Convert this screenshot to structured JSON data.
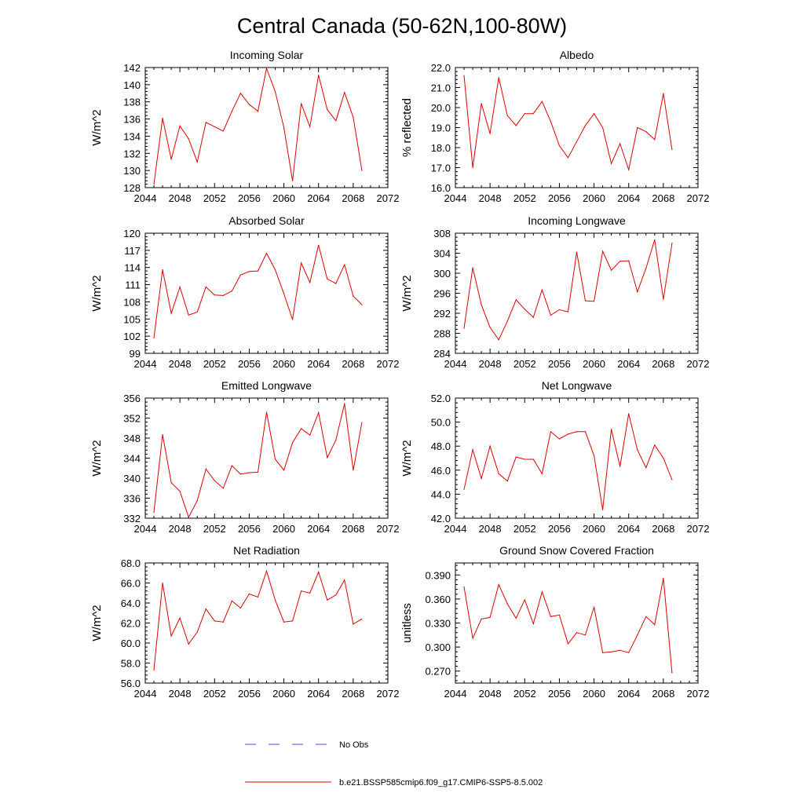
{
  "figure_title": "Central Canada (50-62N,100-80W)",
  "legend": {
    "items": [
      {
        "label": "No Obs",
        "color": "#4a4ae0",
        "dash": "dashed"
      },
      {
        "label": "b.e21.BSSP585cmip6.f09_g17.CMIP6-SSP5-8.5.002",
        "color": "#e00000",
        "dash": "solid"
      }
    ]
  },
  "chart_data": [
    {
      "type": "line",
      "title": "Incoming Solar",
      "ylabel": "W/m^2",
      "xlim": [
        2044,
        2072
      ],
      "ylim": [
        128,
        142
      ],
      "xticks": [
        2044,
        2048,
        2052,
        2056,
        2060,
        2064,
        2068,
        2072
      ],
      "xtick_labels": [
        "2044",
        "2048",
        "2052",
        "2056",
        "2060",
        "2064",
        "2068",
        "2072"
      ],
      "yticks": [
        128,
        130,
        132,
        134,
        136,
        138,
        140,
        142
      ],
      "ytick_labels": [
        "128",
        "130",
        "132",
        "134",
        "136",
        "138",
        "140",
        "142"
      ],
      "x": [
        2045,
        2046,
        2047,
        2048,
        2049,
        2050,
        2051,
        2052,
        2053,
        2054,
        2055,
        2056,
        2057,
        2058,
        2059,
        2060,
        2061,
        2062,
        2063,
        2064,
        2065,
        2066,
        2067,
        2068,
        2069
      ],
      "series": [
        {
          "color": "#e00000",
          "values": [
            128.4,
            136.1,
            131.3,
            135.2,
            133.7,
            131.0,
            135.6,
            135.1,
            134.6,
            136.9,
            139.0,
            137.7,
            136.9,
            141.9,
            139.2,
            135.0,
            128.8,
            137.8,
            135.1,
            141.1,
            137.1,
            135.8,
            139.1,
            136.2,
            130.0
          ]
        }
      ]
    },
    {
      "type": "line",
      "title": "Albedo",
      "ylabel": "% reflected",
      "xlim": [
        2044,
        2072
      ],
      "ylim": [
        16.0,
        22.0
      ],
      "xticks": [
        2044,
        2048,
        2052,
        2056,
        2060,
        2064,
        2068,
        2072
      ],
      "xtick_labels": [
        "2044",
        "2048",
        "2052",
        "2056",
        "2060",
        "2064",
        "2068",
        "2072"
      ],
      "yticks": [
        16,
        17,
        18,
        19,
        20,
        21,
        22
      ],
      "ytick_labels": [
        "16.0",
        "17.0",
        "18.0",
        "19.0",
        "20.0",
        "21.0",
        "22.0"
      ],
      "x": [
        2045,
        2046,
        2047,
        2048,
        2049,
        2050,
        2051,
        2052,
        2053,
        2054,
        2055,
        2056,
        2057,
        2058,
        2059,
        2060,
        2061,
        2062,
        2063,
        2064,
        2065,
        2066,
        2067,
        2068,
        2069
      ],
      "series": [
        {
          "color": "#e00000",
          "values": [
            21.6,
            17.0,
            20.2,
            18.7,
            21.5,
            19.6,
            19.1,
            19.7,
            19.7,
            20.3,
            19.3,
            18.1,
            17.5,
            18.3,
            19.1,
            19.7,
            19.0,
            17.2,
            18.2,
            16.9,
            19.0,
            18.8,
            18.4,
            20.7,
            17.9
          ]
        }
      ]
    },
    {
      "type": "line",
      "title": "Absorbed Solar",
      "ylabel": "W/m^2",
      "xlim": [
        2044,
        2072
      ],
      "ylim": [
        99,
        120
      ],
      "xticks": [
        2044,
        2048,
        2052,
        2056,
        2060,
        2064,
        2068,
        2072
      ],
      "xtick_labels": [
        "2044",
        "2048",
        "2052",
        "2056",
        "2060",
        "2064",
        "2068",
        "2072"
      ],
      "yticks": [
        99,
        102,
        105,
        108,
        111,
        114,
        117,
        120
      ],
      "ytick_labels": [
        "99",
        "102",
        "105",
        "108",
        "111",
        "114",
        "117",
        "120"
      ],
      "x": [
        2045,
        2046,
        2047,
        2048,
        2049,
        2050,
        2051,
        2052,
        2053,
        2054,
        2055,
        2056,
        2057,
        2058,
        2059,
        2060,
        2061,
        2062,
        2063,
        2064,
        2065,
        2066,
        2067,
        2068,
        2069
      ],
      "series": [
        {
          "color": "#e00000",
          "values": [
            101.7,
            113.6,
            106.0,
            110.6,
            105.7,
            106.2,
            110.6,
            109.2,
            109.1,
            109.9,
            112.7,
            113.3,
            113.4,
            116.5,
            113.6,
            109.4,
            104.9,
            114.8,
            111.4,
            117.9,
            112.0,
            111.2,
            114.5,
            109.0,
            107.5
          ]
        }
      ]
    },
    {
      "type": "line",
      "title": "Incoming Longwave",
      "ylabel": "W/m^2",
      "xlim": [
        2044,
        2072
      ],
      "ylim": [
        284,
        308
      ],
      "xticks": [
        2044,
        2048,
        2052,
        2056,
        2060,
        2064,
        2068,
        2072
      ],
      "xtick_labels": [
        "2044",
        "2048",
        "2052",
        "2056",
        "2060",
        "2064",
        "2068",
        "2072"
      ],
      "yticks": [
        284,
        288,
        292,
        296,
        300,
        304,
        308
      ],
      "ytick_labels": [
        "284",
        "288",
        "292",
        "296",
        "300",
        "304",
        "308"
      ],
      "x": [
        2045,
        2046,
        2047,
        2048,
        2049,
        2050,
        2051,
        2052,
        2053,
        2054,
        2055,
        2056,
        2057,
        2058,
        2059,
        2060,
        2061,
        2062,
        2063,
        2064,
        2065,
        2066,
        2067,
        2068,
        2069
      ],
      "series": [
        {
          "color": "#e00000",
          "values": [
            289.0,
            301.1,
            293.7,
            289.2,
            286.7,
            290.4,
            294.7,
            292.8,
            291.2,
            296.7,
            291.6,
            292.7,
            292.3,
            304.2,
            294.5,
            294.4,
            304.4,
            300.6,
            302.4,
            302.5,
            296.3,
            301.0,
            306.7,
            294.8,
            306.0
          ]
        }
      ]
    },
    {
      "type": "line",
      "title": "Emitted Longwave",
      "ylabel": "W/m^2",
      "xlim": [
        2044,
        2072
      ],
      "ylim": [
        332,
        356
      ],
      "xticks": [
        2044,
        2048,
        2052,
        2056,
        2060,
        2064,
        2068,
        2072
      ],
      "xtick_labels": [
        "2044",
        "2048",
        "2052",
        "2056",
        "2060",
        "2064",
        "2068",
        "2072"
      ],
      "yticks": [
        332,
        336,
        340,
        344,
        348,
        352,
        356
      ],
      "ytick_labels": [
        "332",
        "336",
        "340",
        "344",
        "348",
        "352",
        "356"
      ],
      "x": [
        2045,
        2046,
        2047,
        2048,
        2049,
        2050,
        2051,
        2052,
        2053,
        2054,
        2055,
        2056,
        2057,
        2058,
        2059,
        2060,
        2061,
        2062,
        2063,
        2064,
        2065,
        2066,
        2067,
        2068,
        2069
      ],
      "series": [
        {
          "color": "#e00000",
          "values": [
            333.2,
            348.7,
            339.1,
            337.4,
            332.2,
            335.5,
            341.8,
            339.5,
            338.0,
            342.5,
            340.8,
            341.1,
            341.2,
            353.2,
            343.8,
            341.6,
            347.1,
            349.9,
            348.6,
            353.1,
            344.1,
            347.6,
            354.9,
            341.6,
            351.1
          ]
        }
      ]
    },
    {
      "type": "line",
      "title": "Net Longwave",
      "ylabel": "W/m^2",
      "xlim": [
        2044,
        2072
      ],
      "ylim": [
        42.0,
        52.0
      ],
      "xticks": [
        2044,
        2048,
        2052,
        2056,
        2060,
        2064,
        2068,
        2072
      ],
      "xtick_labels": [
        "2044",
        "2048",
        "2052",
        "2056",
        "2060",
        "2064",
        "2068",
        "2072"
      ],
      "yticks": [
        42,
        44,
        46,
        48,
        50,
        52
      ],
      "ytick_labels": [
        "42.0",
        "44.0",
        "46.0",
        "48.0",
        "50.0",
        "52.0"
      ],
      "x": [
        2045,
        2046,
        2047,
        2048,
        2049,
        2050,
        2051,
        2052,
        2053,
        2054,
        2055,
        2056,
        2057,
        2058,
        2059,
        2060,
        2061,
        2062,
        2063,
        2064,
        2065,
        2066,
        2067,
        2068,
        2069
      ],
      "series": [
        {
          "color": "#e00000",
          "values": [
            44.4,
            47.7,
            45.3,
            48.0,
            45.7,
            45.1,
            47.1,
            46.9,
            46.9,
            45.7,
            49.2,
            48.6,
            49.0,
            49.2,
            49.2,
            47.2,
            42.7,
            49.4,
            46.3,
            50.7,
            47.7,
            46.2,
            48.1,
            47.0,
            45.2
          ]
        }
      ]
    },
    {
      "type": "line",
      "title": "Net Radiation",
      "ylabel": "W/m^2",
      "xlim": [
        2044,
        2072
      ],
      "ylim": [
        56.0,
        68.0
      ],
      "xticks": [
        2044,
        2048,
        2052,
        2056,
        2060,
        2064,
        2068,
        2072
      ],
      "xtick_labels": [
        "2044",
        "2048",
        "2052",
        "2056",
        "2060",
        "2064",
        "2068",
        "2072"
      ],
      "yticks": [
        56,
        58,
        60,
        62,
        64,
        66,
        68
      ],
      "ytick_labels": [
        "56.0",
        "58.0",
        "60.0",
        "62.0",
        "64.0",
        "66.0",
        "68.0"
      ],
      "x": [
        2045,
        2046,
        2047,
        2048,
        2049,
        2050,
        2051,
        2052,
        2053,
        2054,
        2055,
        2056,
        2057,
        2058,
        2059,
        2060,
        2061,
        2062,
        2063,
        2064,
        2065,
        2066,
        2067,
        2068,
        2069
      ],
      "series": [
        {
          "color": "#e00000",
          "values": [
            57.3,
            66.0,
            60.7,
            62.5,
            59.9,
            61.1,
            63.4,
            62.2,
            62.1,
            64.2,
            63.5,
            64.9,
            64.6,
            67.2,
            64.3,
            62.1,
            62.2,
            65.2,
            65.0,
            67.1,
            64.3,
            64.8,
            66.3,
            61.9,
            62.4
          ]
        }
      ]
    },
    {
      "type": "line",
      "title": "Ground Snow Covered Fraction",
      "ylabel": "unitless",
      "xlim": [
        2044,
        2072
      ],
      "ylim": [
        0.255,
        0.405
      ],
      "xticks": [
        2044,
        2048,
        2052,
        2056,
        2060,
        2064,
        2068,
        2072
      ],
      "xtick_labels": [
        "2044",
        "2048",
        "2052",
        "2056",
        "2060",
        "2064",
        "2068",
        "2072"
      ],
      "yticks": [
        0.27,
        0.3,
        0.33,
        0.36,
        0.39
      ],
      "ytick_labels": [
        "0.270",
        "0.300",
        "0.330",
        "0.360",
        "0.390"
      ],
      "x": [
        2045,
        2046,
        2047,
        2048,
        2049,
        2050,
        2051,
        2052,
        2053,
        2054,
        2055,
        2056,
        2057,
        2058,
        2059,
        2060,
        2061,
        2062,
        2063,
        2064,
        2065,
        2066,
        2067,
        2068,
        2069
      ],
      "series": [
        {
          "color": "#e00000",
          "values": [
            0.375,
            0.311,
            0.335,
            0.337,
            0.378,
            0.354,
            0.336,
            0.359,
            0.329,
            0.369,
            0.338,
            0.34,
            0.304,
            0.318,
            0.315,
            0.35,
            0.293,
            0.294,
            0.296,
            0.293,
            0.315,
            0.338,
            0.328,
            0.386,
            0.268
          ]
        }
      ]
    }
  ]
}
